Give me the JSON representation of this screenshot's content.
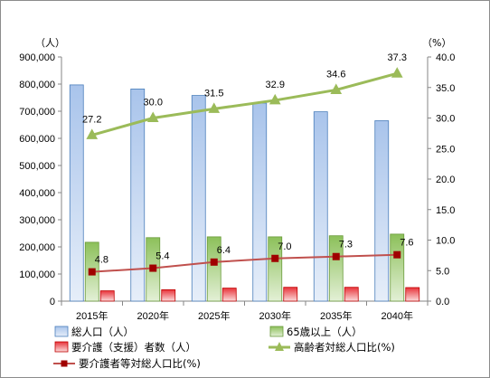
{
  "chart_data": {
    "type": "bar",
    "categories": [
      "2015年",
      "2020年",
      "2025年",
      "2030年",
      "2035年",
      "2040年"
    ],
    "y_left_unit": "（人）",
    "y_right_unit": "（%）",
    "y_left_lim": [
      0,
      900000
    ],
    "y_left_ticks": [
      "0",
      "100,000",
      "200,000",
      "300,000",
      "400,000",
      "500,000",
      "600,000",
      "700,000",
      "800,000",
      "900,000"
    ],
    "y_right_lim": [
      0,
      40
    ],
    "y_right_ticks": [
      "0.0",
      "5.0",
      "10.0",
      "15.0",
      "20.0",
      "25.0",
      "30.0",
      "35.0",
      "40.0"
    ],
    "grid": false,
    "legend_position": "bottom",
    "series": [
      {
        "name": "総人口（人）",
        "kind": "bar",
        "axis": "left",
        "color": "#4a7ebb",
        "fill_top": "#a9c4eb",
        "fill_bottom": "#e6eef9",
        "values": [
          797000,
          782000,
          758000,
          730000,
          698000,
          665000
        ]
      },
      {
        "name": "65歳以上（人）",
        "kind": "bar",
        "axis": "left",
        "color": "#6a9a3a",
        "fill_top": "#8cc05a",
        "fill_bottom": "#e3f0d6",
        "values": [
          217000,
          234000,
          237000,
          237000,
          241000,
          247000
        ]
      },
      {
        "name": "要介護（支援）者数（人）",
        "kind": "bar",
        "axis": "left",
        "color": "#c00000",
        "fill_top": "#e8333a",
        "fill_bottom": "#fbdcdc",
        "values": [
          38000,
          42000,
          48000,
          51000,
          51000,
          50000
        ]
      },
      {
        "name": "高齢者対総人口比(%)",
        "kind": "line",
        "axis": "right",
        "color": "#9bbb59",
        "marker": "triangle",
        "values": [
          27.2,
          30.0,
          31.5,
          32.9,
          34.6,
          37.3
        ],
        "labels": [
          "27.2",
          "30.0",
          "31.5",
          "32.9",
          "34.6",
          "37.3"
        ]
      },
      {
        "name": "要介護者等対総人口比(%)",
        "kind": "line",
        "axis": "right",
        "color": "#c0504d",
        "marker_color": "#a00000",
        "marker": "square",
        "values": [
          4.8,
          5.4,
          6.4,
          7.0,
          7.3,
          7.6
        ],
        "labels": [
          "4.8",
          "5.4",
          "6.4",
          "7.0",
          "7.3",
          "7.6"
        ]
      }
    ]
  }
}
